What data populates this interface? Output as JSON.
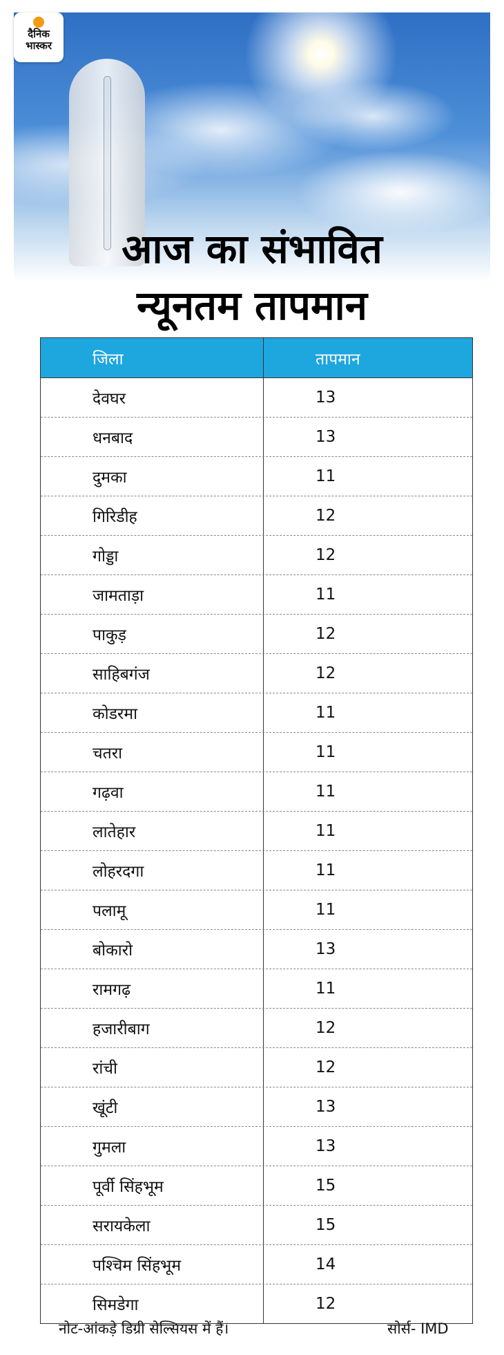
{
  "header": {
    "logo": [
      "दैनिक",
      "भास्कर"
    ],
    "title": [
      "आज का संभावित",
      "न्यूनतम तापमान"
    ]
  },
  "table": {
    "columns": [
      "जिला",
      "तापमान"
    ],
    "rows": [
      [
        "देवघर",
        13
      ],
      [
        "धनबाद",
        13
      ],
      [
        "दुमका",
        11
      ],
      [
        "गिरिडीह",
        12
      ],
      [
        "गोड्डा",
        12
      ],
      [
        "जामताड़ा",
        11
      ],
      [
        "पाकुड़",
        12
      ],
      [
        "साहिबगंज",
        12
      ],
      [
        "कोडरमा",
        11
      ],
      [
        "चतरा",
        11
      ],
      [
        "गढ़वा",
        11
      ],
      [
        "लातेहार",
        11
      ],
      [
        "लोहरदगा",
        11
      ],
      [
        "पलामू",
        11
      ],
      [
        "बोकारो",
        13
      ],
      [
        "रामगढ़",
        11
      ],
      [
        "हजारीबाग",
        12
      ],
      [
        "रांची",
        12
      ],
      [
        "खूंटी",
        13
      ],
      [
        "गुमला",
        13
      ],
      [
        "पूर्वी सिंहभूम",
        15
      ],
      [
        "सरायकेला",
        15
      ],
      [
        "पश्चिम सिंहभूम",
        14
      ],
      [
        "सिमडेगा",
        12
      ]
    ]
  },
  "footer": {
    "note": "नोट-आंकड़े डिग्री सेल्सियस में हैं।",
    "source": "सोर्स- IMD"
  }
}
